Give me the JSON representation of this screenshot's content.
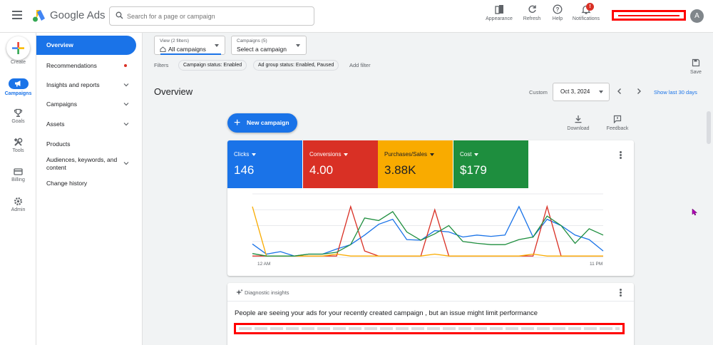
{
  "header": {
    "app_name": "Google Ads",
    "search_placeholder": "Search for a page or campaign",
    "actions": [
      {
        "label": "Appearance",
        "icon": "appearance-icon"
      },
      {
        "label": "Refresh",
        "icon": "refresh-icon"
      },
      {
        "label": "Help",
        "icon": "help-icon"
      },
      {
        "label": "Notifications",
        "icon": "bell-icon",
        "badge": "!"
      }
    ],
    "avatar_initial": "A"
  },
  "rail": {
    "items": [
      {
        "label": "Create",
        "icon": "plus-icon"
      },
      {
        "label": "Campaigns",
        "icon": "megaphone-icon",
        "active": true
      },
      {
        "label": "Goals",
        "icon": "trophy-icon"
      },
      {
        "label": "Tools",
        "icon": "tools-icon"
      },
      {
        "label": "Billing",
        "icon": "card-icon"
      },
      {
        "label": "Admin",
        "icon": "gear-icon"
      }
    ]
  },
  "nav": {
    "items": [
      {
        "label": "Overview",
        "active": true
      },
      {
        "label": "Recommendations",
        "dot": true
      },
      {
        "label": "Insights and reports",
        "chevron": true
      },
      {
        "label": "Campaigns",
        "chevron": true
      },
      {
        "label": "Assets",
        "chevron": true
      },
      {
        "label": "Products"
      },
      {
        "label": "Audiences, keywords, and",
        "label2": "content",
        "chevron": true
      },
      {
        "label": "Change history"
      }
    ]
  },
  "toolbar": {
    "view": {
      "label": "View (2 filters)",
      "value": "All campaigns"
    },
    "campaigns": {
      "label": "Campaigns (5)",
      "value": "Select a campaign"
    },
    "filters_label": "Filters",
    "chips": [
      "Campaign status: Enabled",
      "Ad group status: Enabled, Paused"
    ],
    "add_filter": "Add filter",
    "save_label": "Save"
  },
  "overview": {
    "title": "Overview",
    "custom_label": "Custom",
    "date": "Oct 3, 2024",
    "show_last": "Show last 30 days",
    "new_campaign": "New campaign",
    "download": "Download",
    "feedback": "Feedback"
  },
  "metrics": [
    {
      "label": "Clicks",
      "value": "146",
      "color": "#1a73e8"
    },
    {
      "label": "Conversions",
      "value": "4.00",
      "color": "#d93025"
    },
    {
      "label": "Purchases/Sales",
      "value": "3.88K",
      "color": "#f9ab00"
    },
    {
      "label": "Cost",
      "value": "$179",
      "color": "#1e8e3e"
    }
  ],
  "chart_data": {
    "type": "line",
    "x_labels": [
      "12 AM",
      "11 PM"
    ],
    "grid": true,
    "series": [
      {
        "color": "#1a73e8",
        "values": [
          0.21,
          0.05,
          0.09,
          0.02,
          0.05,
          0.05,
          0.13,
          0.2,
          0.35,
          0.52,
          0.6,
          0.28,
          0.27,
          0.42,
          0.4,
          0.32,
          0.35,
          0.33,
          0.35,
          0.8,
          0.32,
          0.6,
          0.5,
          0.35,
          0.28,
          0.1
        ]
      },
      {
        "color": "#d93025",
        "values": [
          0.02,
          0.02,
          0.02,
          0.02,
          0.02,
          0.02,
          0.02,
          0.8,
          0.1,
          0.02,
          0.02,
          0.02,
          0.02,
          0.75,
          0.02,
          0.02,
          0.02,
          0.02,
          0.02,
          0.02,
          0.02,
          0.8,
          0.02,
          0.02,
          0.02,
          0.02
        ]
      },
      {
        "color": "#f9ab00",
        "values": [
          0.8,
          0.02,
          0.02,
          0.02,
          0.02,
          0.02,
          0.05,
          0.02,
          0.02,
          0.02,
          0.02,
          0.02,
          0.02,
          0.05,
          0.02,
          0.02,
          0.02,
          0.02,
          0.02,
          0.02,
          0.05,
          0.02,
          0.02,
          0.02,
          0.02,
          0.02
        ]
      },
      {
        "color": "#1e8e3e",
        "values": [
          0.06,
          0.02,
          0.02,
          0.02,
          0.05,
          0.05,
          0.08,
          0.2,
          0.62,
          0.58,
          0.72,
          0.4,
          0.27,
          0.37,
          0.5,
          0.25,
          0.22,
          0.2,
          0.2,
          0.28,
          0.32,
          0.65,
          0.5,
          0.22,
          0.45,
          0.35
        ]
      }
    ]
  },
  "insights": {
    "heading": "Diagnostic insights",
    "message": "People are seeing your ads for your recently created campaign , but an issue might limit performance"
  }
}
